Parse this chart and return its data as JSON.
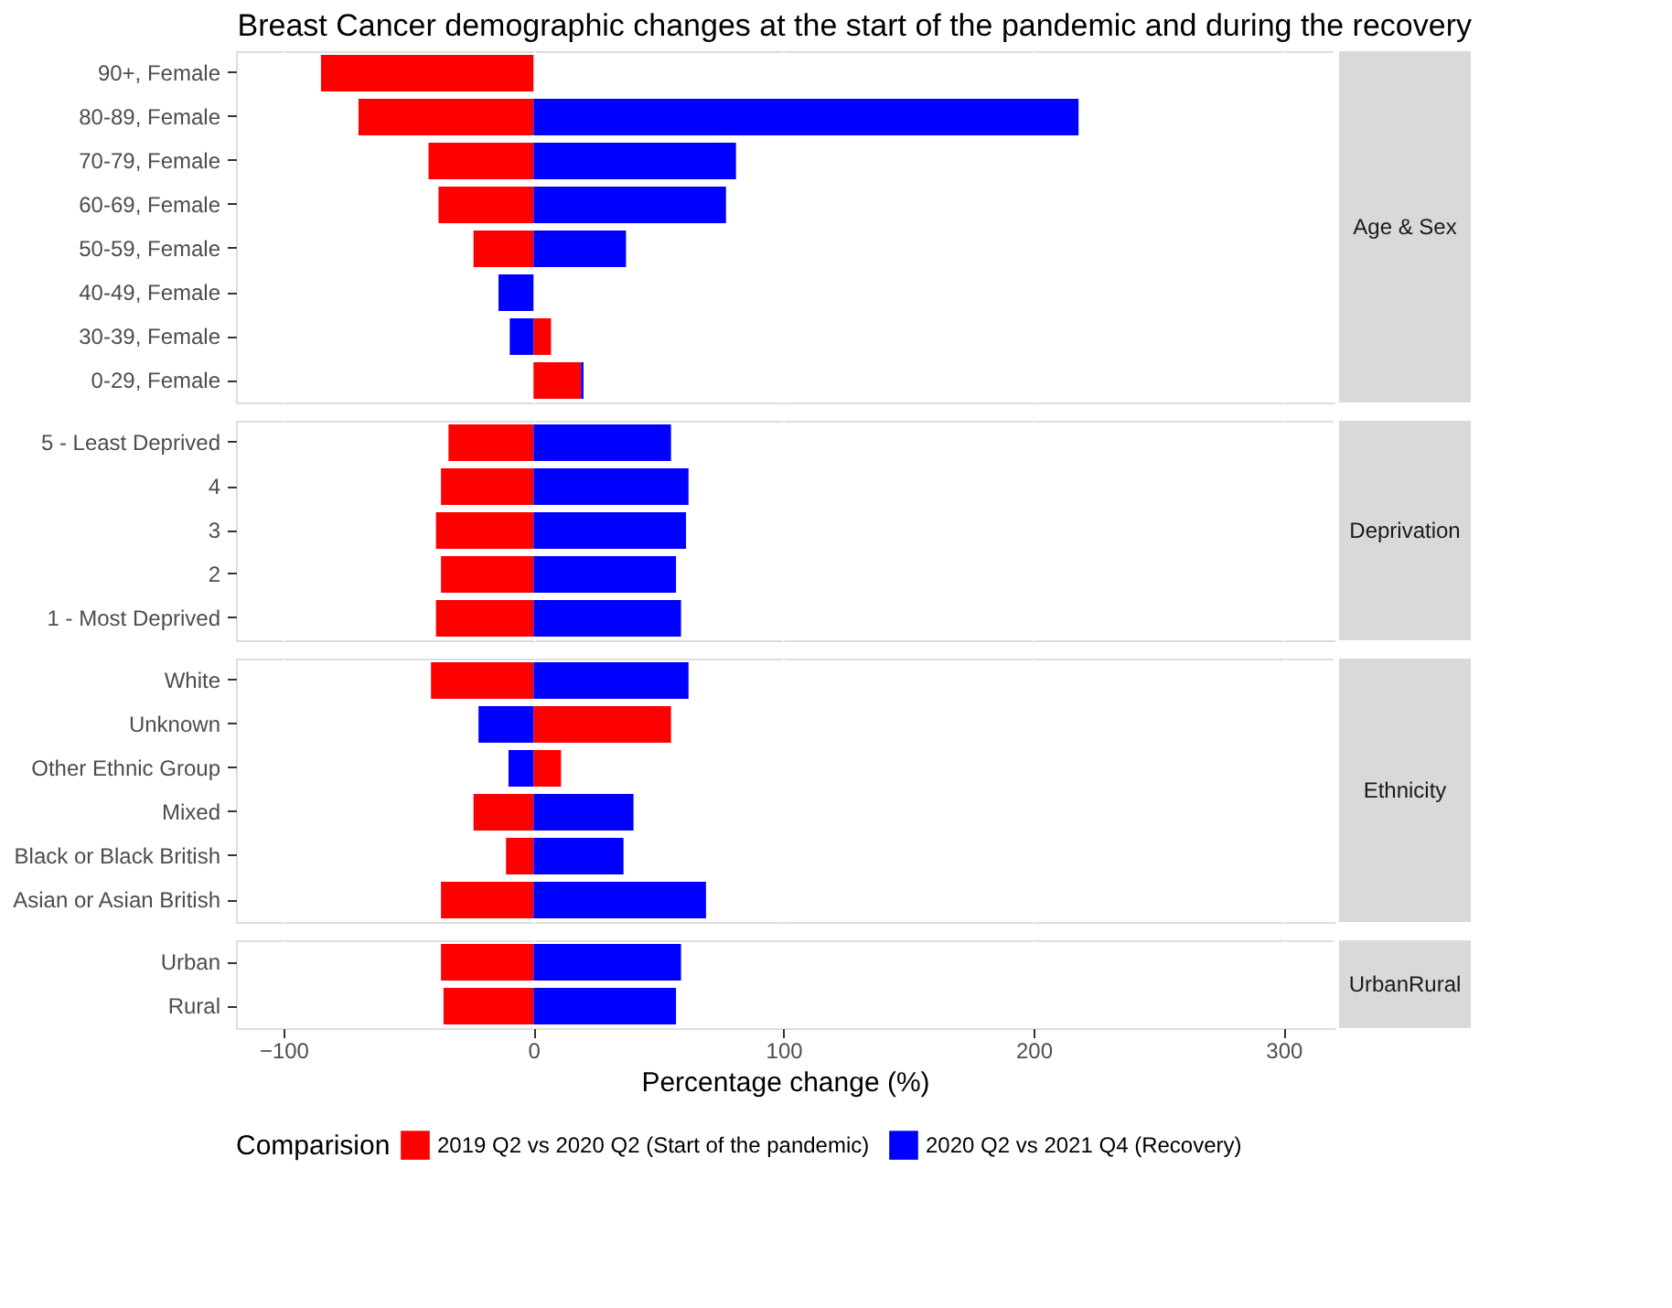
{
  "chart_data": [
    {
      "type": "bar",
      "orientation": "horizontal",
      "stacked": true,
      "annotations": [
        "Breast Cancer demographic changes at the start of the pandemic and during the recovery",
        "Age & Sex"
      ],
      "categories": [
        "90+, Female",
        "80-89, Female",
        "70-79, Female",
        "60-69, Female",
        "50-59, Female",
        "40-49, Female",
        "30-39, Female",
        "0-29, Female"
      ],
      "xlim": [
        -119,
        320
      ],
      "xticks": [
        -100,
        0,
        100,
        200,
        300
      ],
      "grid": true,
      "tick_labels": "y",
      "legend": "bottom",
      "legend_title": "Comparision",
      "series": [
        {
          "name": "2019 Q2 vs 2020 Q2 (Start of the pandemic)",
          "color": "#ff0000",
          "values": [
            -85,
            -70,
            -42,
            -38,
            -24,
            null,
            7,
            19
          ]
        },
        {
          "name": "2020 Q2 vs 2021 Q4 (Recovery)",
          "color": "#0000ff",
          "values": [
            null,
            218,
            81,
            77,
            37,
            -14,
            -9.5,
            1
          ]
        }
      ]
    },
    {
      "type": "bar",
      "orientation": "horizontal",
      "stacked": true,
      "annotations": [
        "Deprivation"
      ],
      "categories": [
        "5 - Least Deprived",
        "4",
        "3",
        "2",
        "1 - Most Deprived"
      ],
      "xlim": [
        -119,
        320
      ],
      "xticks": [
        -100,
        0,
        100,
        200,
        300
      ],
      "grid": true,
      "tick_labels": "y",
      "series": [
        {
          "name": "2019 Q2 vs 2020 Q2 (Start of the pandemic)",
          "color": "#ff0000",
          "values": [
            -34,
            -37,
            -39,
            -37,
            -39
          ]
        },
        {
          "name": "2020 Q2 vs 2021 Q4 (Recovery)",
          "color": "#0000ff",
          "values": [
            55,
            62,
            61,
            57,
            59
          ]
        }
      ]
    },
    {
      "type": "bar",
      "orientation": "horizontal",
      "stacked": true,
      "annotations": [
        "Ethnicity"
      ],
      "categories": [
        "White",
        "Unknown",
        "Other Ethnic Group",
        "Mixed",
        "Black or Black British",
        "Asian or Asian British"
      ],
      "xlim": [
        -119,
        320
      ],
      "xticks": [
        -100,
        0,
        100,
        200,
        300
      ],
      "grid": true,
      "tick_labels": "y",
      "series": [
        {
          "name": "2019 Q2 vs 2020 Q2 (Start of the pandemic)",
          "color": "#ff0000",
          "values": [
            -41,
            55,
            11,
            -24,
            -11,
            -37
          ]
        },
        {
          "name": "2020 Q2 vs 2021 Q4 (Recovery)",
          "color": "#0000ff",
          "values": [
            62,
            -22,
            -10,
            40,
            36,
            69
          ]
        }
      ]
    },
    {
      "type": "bar",
      "orientation": "horizontal",
      "stacked": true,
      "annotations": [
        "UrbanRural"
      ],
      "categories": [
        "Urban",
        "Rural"
      ],
      "xlim": [
        -119,
        320
      ],
      "xticks": [
        -100,
        0,
        100,
        200,
        300
      ],
      "grid": true,
      "xlabel": "Percentage change (%)",
      "series": [
        {
          "name": "2019 Q2 vs 2020 Q2 (Start of the pandemic)",
          "color": "#ff0000",
          "values": [
            -37,
            -36
          ]
        },
        {
          "name": "2020 Q2 vs 2021 Q4 (Recovery)",
          "color": "#0000ff",
          "values": [
            59,
            57
          ]
        }
      ]
    }
  ]
}
